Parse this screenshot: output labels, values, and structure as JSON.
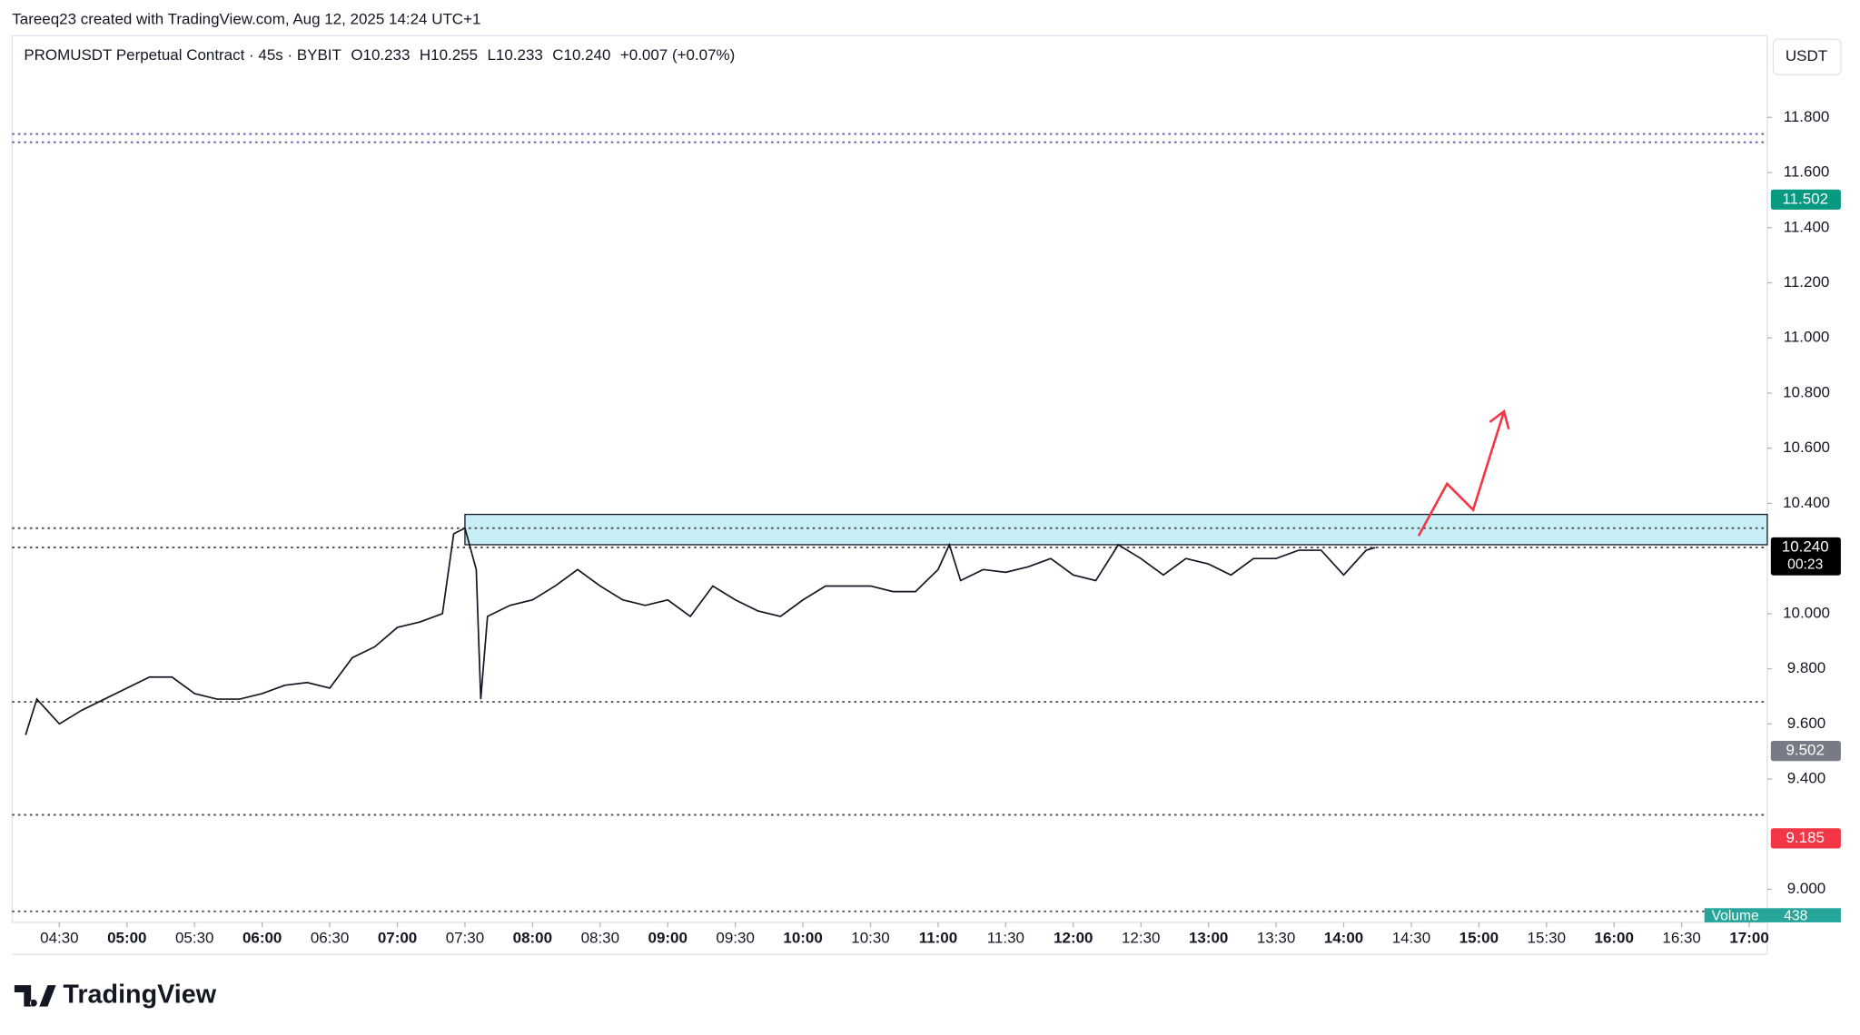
{
  "chart_data": {
    "type": "line",
    "attribution": "Tareeq23 created with TradingView.com, Aug 12, 2025 14:24 UTC+1",
    "title": "PROMUSDT Perpetual Contract · 45s · BYBIT",
    "ohlc": [
      "O10.233",
      "H10.255",
      "L10.233",
      "C10.240",
      "+0.007 (+0.07%)"
    ],
    "currency": "USDT",
    "logo": "TradingView",
    "volume_label": "Volume",
    "volume_value": "438",
    "countdown": "00:23",
    "color": "#131722",
    "x": [
      255,
      260,
      270,
      280,
      290,
      300,
      310,
      320,
      330,
      340,
      350,
      360,
      370,
      380,
      390,
      400,
      410,
      420,
      430,
      440,
      445,
      450,
      455,
      457,
      460,
      470,
      480,
      490,
      500,
      510,
      520,
      530,
      540,
      550,
      560,
      570,
      580,
      590,
      600,
      610,
      620,
      630,
      640,
      650,
      660,
      665,
      670,
      680,
      690,
      700,
      710,
      720,
      730,
      740,
      750,
      760,
      770,
      780,
      790,
      800,
      810,
      820,
      830,
      840,
      850,
      854
    ],
    "values": [
      9.56,
      9.69,
      9.6,
      9.65,
      9.69,
      9.73,
      9.77,
      9.77,
      9.71,
      9.69,
      9.69,
      9.71,
      9.74,
      9.75,
      9.73,
      9.84,
      9.88,
      9.95,
      9.97,
      10.0,
      10.29,
      10.31,
      10.16,
      9.69,
      9.99,
      10.03,
      10.05,
      10.1,
      10.16,
      10.1,
      10.05,
      10.03,
      10.05,
      9.99,
      10.1,
      10.05,
      10.01,
      9.99,
      10.05,
      10.1,
      10.1,
      10.1,
      10.08,
      10.08,
      10.16,
      10.25,
      10.12,
      10.16,
      10.15,
      10.17,
      10.2,
      10.14,
      10.12,
      10.25,
      10.2,
      10.14,
      10.2,
      10.18,
      10.14,
      10.2,
      10.2,
      10.23,
      10.23,
      10.14,
      10.23,
      10.24
    ],
    "xlim": [
      249,
      1028
    ],
    "xticks": [
      {
        "value": 270,
        "label": "04:30"
      },
      {
        "value": 300,
        "label": "05:00"
      },
      {
        "value": 330,
        "label": "05:30"
      },
      {
        "value": 360,
        "label": "06:00"
      },
      {
        "value": 390,
        "label": "06:30"
      },
      {
        "value": 420,
        "label": "07:00"
      },
      {
        "value": 450,
        "label": "07:30"
      },
      {
        "value": 480,
        "label": "08:00"
      },
      {
        "value": 510,
        "label": "08:30"
      },
      {
        "value": 540,
        "label": "09:00"
      },
      {
        "value": 570,
        "label": "09:30"
      },
      {
        "value": 600,
        "label": "10:00"
      },
      {
        "value": 630,
        "label": "10:30"
      },
      {
        "value": 660,
        "label": "11:00"
      },
      {
        "value": 690,
        "label": "11:30"
      },
      {
        "value": 720,
        "label": "12:00"
      },
      {
        "value": 750,
        "label": "12:30"
      },
      {
        "value": 780,
        "label": "13:00"
      },
      {
        "value": 810,
        "label": "13:30"
      },
      {
        "value": 840,
        "label": "14:00"
      },
      {
        "value": 870,
        "label": "14:30"
      },
      {
        "value": 900,
        "label": "15:00"
      },
      {
        "value": 930,
        "label": "15:30"
      },
      {
        "value": 960,
        "label": "16:00"
      },
      {
        "value": 990,
        "label": "16:30"
      },
      {
        "value": 1020,
        "label": "17:00"
      }
    ],
    "ylim": [
      8.88,
      12.097
    ],
    "yticks": [
      {
        "value": 9,
        "label": "9.000"
      },
      {
        "value": 9.4,
        "label": "9.400"
      },
      {
        "value": 9.6,
        "label": "9.600"
      },
      {
        "value": 9.8,
        "label": "9.800"
      },
      {
        "value": 10,
        "label": "10.000"
      },
      {
        "value": 10.4,
        "label": "10.400"
      },
      {
        "value": 10.6,
        "label": "10.600"
      },
      {
        "value": 10.8,
        "label": "10.800"
      },
      {
        "value": 11,
        "label": "11.000"
      },
      {
        "value": 11.2,
        "label": "11.200"
      },
      {
        "value": 11.4,
        "label": "11.400"
      },
      {
        "value": 11.6,
        "label": "11.600"
      },
      {
        "value": 11.8,
        "label": "11.800"
      }
    ],
    "price_tags": [
      {
        "value": 11.502,
        "label": "11.502",
        "color": "#089981"
      },
      {
        "value": 10.24,
        "label": "10.240",
        "color": "#000000"
      },
      {
        "value": 9.502,
        "label": "9.502",
        "color": "#787b86"
      },
      {
        "value": 9.185,
        "label": "9.185",
        "color": "#f23645"
      }
    ],
    "levels": [
      {
        "value": 11.74,
        "color": "#5d5fa8"
      },
      {
        "value": 11.71,
        "color": "#5d5fa8"
      },
      {
        "value": 10.31,
        "color": "#555555"
      },
      {
        "value": 10.24,
        "color": "#555555"
      },
      {
        "value": 9.68,
        "color": "#555555"
      },
      {
        "value": 9.27,
        "color": "#555555"
      },
      {
        "value": 8.92,
        "color": "#555555"
      }
    ],
    "zone": {
      "from": 450,
      "top": 10.36,
      "bottom": 10.25,
      "color": "#c8eef6"
    }
  }
}
